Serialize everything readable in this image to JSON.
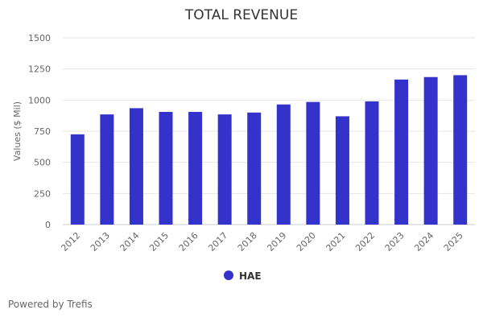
{
  "chart_data": {
    "type": "bar",
    "title": "TOTAL REVENUE",
    "ylabel": "Values ($ Mil)",
    "xlabel": "",
    "categories": [
      "2012",
      "2013",
      "2014",
      "2015",
      "2016",
      "2017",
      "2018",
      "2019",
      "2020",
      "2021",
      "2022",
      "2023",
      "2024",
      "2025"
    ],
    "series": [
      {
        "name": "HAE",
        "color": "#3333cc",
        "values": [
          725,
          885,
          935,
          905,
          905,
          885,
          900,
          965,
          985,
          870,
          990,
          1165,
          1185,
          1200
        ]
      }
    ],
    "ylim": [
      0,
      1500
    ],
    "yticks": [
      "0",
      "250",
      "500",
      "750",
      "1000",
      "1250",
      "1500"
    ],
    "grid": true,
    "legend_position": "bottom"
  },
  "footer": {
    "credit": "Powered by Trefis"
  }
}
